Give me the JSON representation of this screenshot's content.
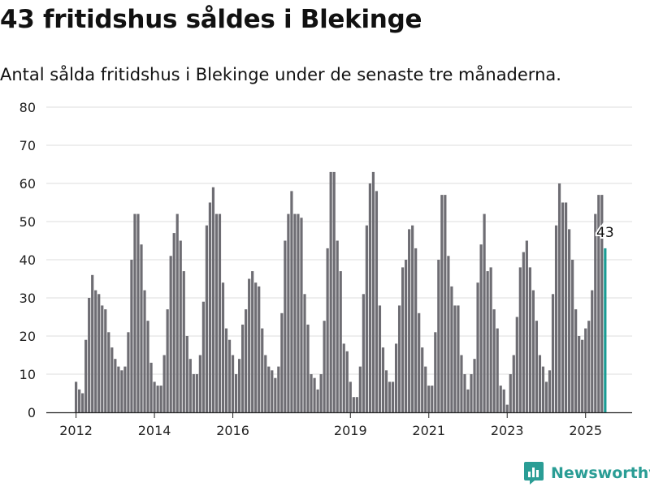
{
  "header": {
    "title": "43 fritidshus såldes i Blekinge",
    "subtitle": "Antal sålda fritidshus i Blekinge under de senaste tre månaderna."
  },
  "brand": {
    "name": "Newsworthy"
  },
  "colors": {
    "bar": "#6e6d73",
    "highlight": "#1a9c94",
    "grid": "#dddddd"
  },
  "chart_data": {
    "type": "bar",
    "title": "43 fritidshus såldes i Blekinge",
    "subtitle": "Antal sålda fritidshus i Blekinge under de senaste tre månaderna.",
    "xlabel": "",
    "ylabel": "",
    "ylim": [
      0,
      80
    ],
    "yticks": [
      0,
      10,
      20,
      30,
      40,
      50,
      60,
      70,
      80
    ],
    "grid": true,
    "xticks": [
      {
        "label": "2012",
        "year": 2012
      },
      {
        "label": "2014",
        "year": 2014
      },
      {
        "label": "2016",
        "year": 2016
      },
      {
        "label": "2019",
        "year": 2019
      },
      {
        "label": "2021",
        "year": 2021
      },
      {
        "label": "2023",
        "year": 2023
      },
      {
        "label": "2025",
        "year": 2025
      }
    ],
    "start_month": "2012-01",
    "frequency": "monthly",
    "values": [
      8,
      6,
      5,
      19,
      30,
      36,
      32,
      31,
      28,
      27,
      21,
      17,
      14,
      12,
      11,
      12,
      21,
      40,
      52,
      52,
      44,
      32,
      24,
      13,
      8,
      7,
      7,
      15,
      27,
      41,
      47,
      52,
      45,
      37,
      20,
      14,
      10,
      10,
      15,
      29,
      49,
      55,
      59,
      52,
      52,
      34,
      22,
      19,
      15,
      10,
      14,
      23,
      27,
      35,
      37,
      34,
      33,
      22,
      15,
      12,
      11,
      9,
      12,
      26,
      45,
      52,
      58,
      52,
      52,
      51,
      31,
      23,
      10,
      9,
      6,
      10,
      24,
      43,
      63,
      63,
      45,
      37,
      18,
      16,
      8,
      4,
      4,
      12,
      31,
      49,
      60,
      63,
      58,
      28,
      17,
      11,
      8,
      8,
      18,
      28,
      38,
      40,
      48,
      49,
      43,
      26,
      17,
      12,
      7,
      7,
      21,
      40,
      57,
      57,
      41,
      33,
      28,
      28,
      15,
      10,
      6,
      10,
      14,
      34,
      44,
      52,
      37,
      38,
      27,
      22,
      7,
      6,
      2,
      10,
      15,
      25,
      38,
      42,
      45,
      38,
      32,
      24,
      15,
      12,
      8,
      11,
      31,
      49,
      60,
      55,
      55,
      48,
      40,
      27,
      20,
      19,
      22,
      24,
      32,
      52,
      57,
      57,
      43
    ],
    "highlight_last": true,
    "annotation": {
      "label": "43",
      "value": 43
    }
  }
}
